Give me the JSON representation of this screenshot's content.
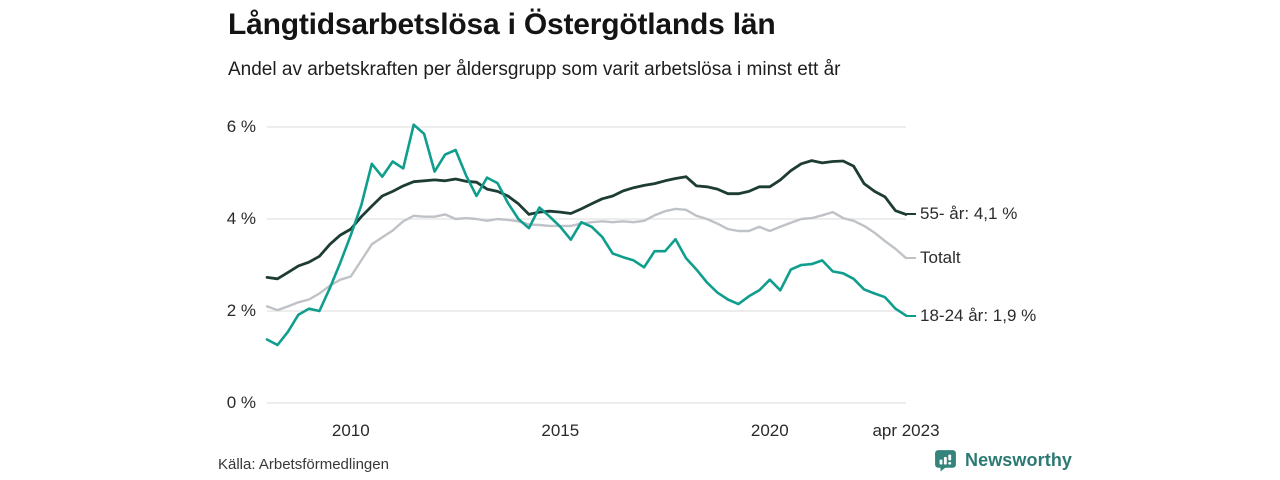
{
  "header": {
    "title": "Långtidsarbetslösa i Östergötlands län",
    "subtitle": "Andel av arbetskraften per åldersgrupp som varit arbetslösa i minst ett år"
  },
  "chart_data": {
    "type": "line",
    "title": "Långtidsarbetslösa i Östergötlands län",
    "subtitle": "Andel av arbetskraften per åldersgrupp som varit arbetslösa i minst ett år",
    "unit": "%",
    "grid": "horizontal",
    "legend_position": "right-end-labels",
    "xlim": [
      2008,
      2023.25
    ],
    "ylim": [
      0,
      6.3
    ],
    "x": [
      2008,
      2008.25,
      2008.5,
      2008.75,
      2009,
      2009.25,
      2009.5,
      2009.75,
      2010,
      2010.25,
      2010.5,
      2010.75,
      2011,
      2011.25,
      2011.5,
      2011.75,
      2012,
      2012.25,
      2012.5,
      2012.75,
      2013,
      2013.25,
      2013.5,
      2013.75,
      2014,
      2014.25,
      2014.5,
      2014.75,
      2015,
      2015.25,
      2015.5,
      2015.75,
      2016,
      2016.25,
      2016.5,
      2016.75,
      2017,
      2017.25,
      2017.5,
      2017.75,
      2018,
      2018.25,
      2018.5,
      2018.75,
      2019,
      2019.25,
      2019.5,
      2019.75,
      2020,
      2020.25,
      2020.5,
      2020.75,
      2021,
      2021.25,
      2021.5,
      2021.75,
      2022,
      2022.25,
      2022.5,
      2022.75,
      2023,
      2023.25
    ],
    "series": [
      {
        "name": "55- år",
        "end_label": "55- år: 4,1 %",
        "end_value": "4,1 %",
        "color": "#1d3c34",
        "values": [
          2.73,
          2.7,
          2.84,
          2.98,
          3.06,
          3.19,
          3.45,
          3.65,
          3.78,
          4.05,
          4.28,
          4.5,
          4.6,
          4.72,
          4.81,
          4.83,
          4.85,
          4.83,
          4.87,
          4.82,
          4.8,
          4.65,
          4.6,
          4.5,
          4.33,
          4.1,
          4.15,
          4.17,
          4.15,
          4.12,
          4.22,
          4.33,
          4.44,
          4.5,
          4.61,
          4.68,
          4.73,
          4.77,
          4.83,
          4.88,
          4.92,
          4.72,
          4.7,
          4.65,
          4.55,
          4.55,
          4.6,
          4.7,
          4.7,
          4.85,
          5.05,
          5.2,
          5.27,
          5.22,
          5.25,
          5.26,
          5.15,
          4.77,
          4.6,
          4.48,
          4.18,
          4.1
        ]
      },
      {
        "name": "Totalt",
        "end_label": "Totalt",
        "end_value": "",
        "color": "#bfc2c7",
        "values": [
          2.1,
          2.02,
          2.1,
          2.19,
          2.25,
          2.38,
          2.55,
          2.68,
          2.75,
          3.1,
          3.45,
          3.6,
          3.75,
          3.95,
          4.07,
          4.05,
          4.05,
          4.1,
          4.0,
          4.02,
          4.0,
          3.96,
          4.0,
          3.98,
          3.95,
          3.88,
          3.87,
          3.85,
          3.85,
          3.85,
          3.9,
          3.93,
          3.95,
          3.93,
          3.95,
          3.93,
          3.96,
          4.08,
          4.17,
          4.22,
          4.2,
          4.07,
          4.0,
          3.9,
          3.78,
          3.74,
          3.74,
          3.83,
          3.74,
          3.83,
          3.92,
          4.0,
          4.02,
          4.08,
          4.15,
          4.02,
          3.96,
          3.85,
          3.7,
          3.52,
          3.35,
          3.15
        ]
      },
      {
        "name": "18-24 år",
        "end_label": "18-24 år: 1,9 %",
        "end_value": "1,9 %",
        "color": "#0f9e8d",
        "values": [
          1.38,
          1.26,
          1.55,
          1.92,
          2.05,
          2.0,
          2.5,
          3.05,
          3.65,
          4.3,
          5.2,
          4.92,
          5.25,
          5.1,
          6.05,
          5.85,
          5.03,
          5.4,
          5.5,
          4.95,
          4.5,
          4.9,
          4.78,
          4.35,
          4.0,
          3.8,
          4.25,
          4.05,
          3.83,
          3.55,
          3.93,
          3.83,
          3.61,
          3.25,
          3.17,
          3.1,
          2.95,
          3.3,
          3.3,
          3.56,
          3.15,
          2.9,
          2.62,
          2.4,
          2.25,
          2.15,
          2.32,
          2.45,
          2.68,
          2.45,
          2.9,
          3.0,
          3.02,
          3.1,
          2.86,
          2.82,
          2.7,
          2.47,
          2.38,
          2.3,
          2.05,
          1.9
        ]
      }
    ],
    "y_ticks": [
      {
        "label": "0 %",
        "value": 0
      },
      {
        "label": "2 %",
        "value": 2
      },
      {
        "label": "4 %",
        "value": 4
      },
      {
        "label": "6 %",
        "value": 6
      }
    ],
    "x_ticks": [
      {
        "label": "2010",
        "value": 2010
      },
      {
        "label": "2015",
        "value": 2015
      },
      {
        "label": "2020",
        "value": 2020
      },
      {
        "label": "apr 2023",
        "value": 2023.25
      }
    ],
    "grid_color": "#e2e2e2"
  },
  "footer": {
    "source": "Källa: Arbetsförmedlingen",
    "brand": "Newsworthy",
    "brand_color": "#2c7a73",
    "brand_icon_color": "#35847c"
  }
}
